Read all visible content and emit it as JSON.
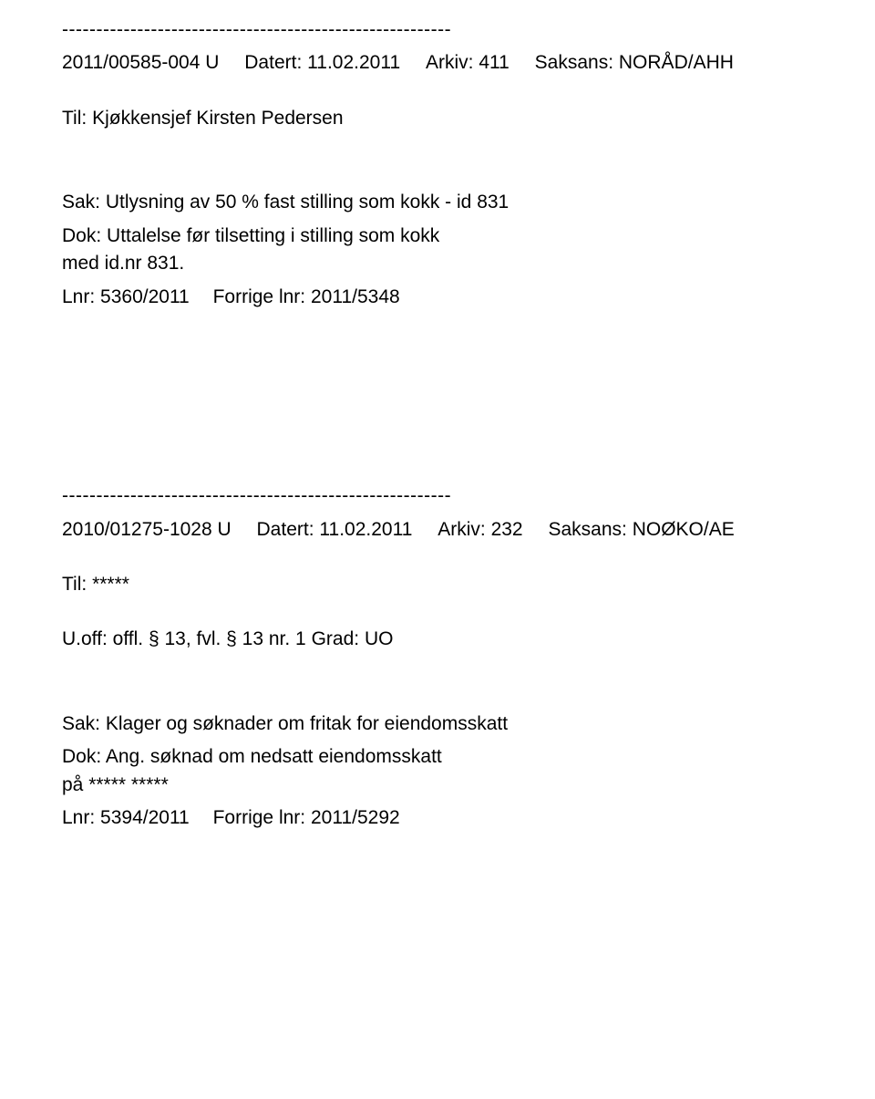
{
  "entries": [
    {
      "divider": "---------------------------------------------------------",
      "caseId": "2011/00585-004 U",
      "dateLabel": "Datert:",
      "dateValue": "11.02.2011",
      "arkivLabel": "Arkiv:",
      "arkivValue": "411",
      "saksansLabel": "Saksans:",
      "saksansValue": "NORÅD/AHH",
      "recipientLabel": "Til:",
      "recipientValue": "Kjøkkensjef Kirsten Pedersen",
      "sakLabel": "Sak:",
      "sakText": "Utlysning av 50 % fast stilling som kokk - id 831",
      "dokLabel": "Dok:",
      "dokText": "Uttalelse før tilsetting i stilling som kokk",
      "dokCont": "med id.nr 831.",
      "lnrLabel": "Lnr:",
      "lnrValue": "5360/2011",
      "forrigeLabel": "Forrige lnr:",
      "forrigeValue": "2011/5348"
    },
    {
      "divider": "---------------------------------------------------------",
      "caseId": "2010/01275-1028 U",
      "dateLabel": "Datert:",
      "dateValue": "11.02.2011",
      "arkivLabel": "Arkiv:",
      "arkivValue": "232",
      "saksansLabel": "Saksans:",
      "saksansValue": "NOØKO/AE",
      "recipientLabel": "Til:",
      "recipientValue": "*****",
      "offLabel": "U.off:",
      "offText": "offl. § 13, fvl. § 13 nr. 1",
      "gradLabel": "Grad:",
      "gradValue": "UO",
      "sakLabel": "Sak:",
      "sakText": "Klager og søknader om fritak for eiendomsskatt",
      "dokLabel": "Dok:",
      "dokText": "Ang. søknad om nedsatt eiendomsskatt",
      "dokCont": "på ***** *****",
      "lnrLabel": "Lnr:",
      "lnrValue": "5394/2011",
      "forrigeLabel": "Forrige lnr:",
      "forrigeValue": "2011/5292"
    }
  ]
}
